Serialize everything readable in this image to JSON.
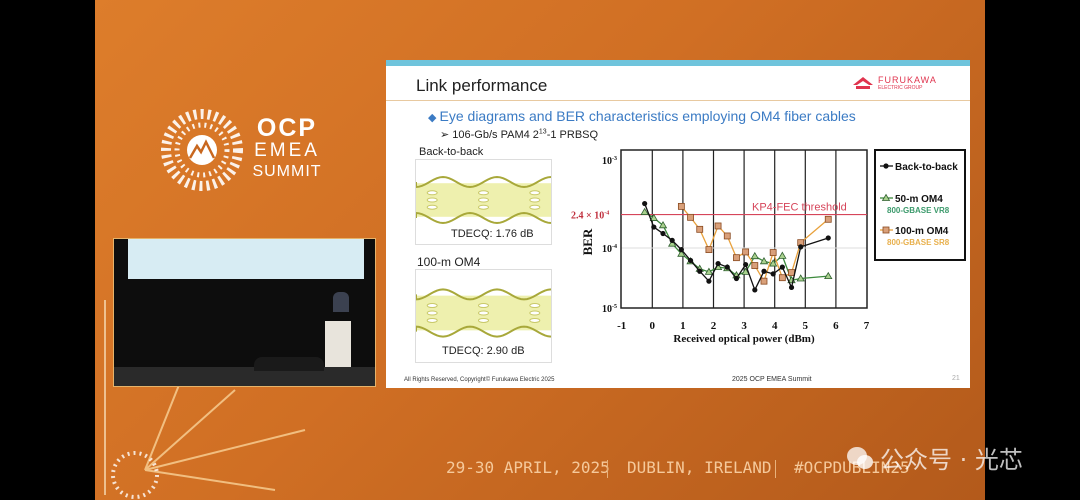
{
  "event": {
    "logo": {
      "line1": "OCP",
      "line2": "EMEA",
      "line3": "SUMMIT"
    },
    "date": "29-30 APRIL, 2025",
    "location": "DUBLIN, IRELAND",
    "hashtag": "#OCPDUBLIN25",
    "watermark": "公众号 · 光芯"
  },
  "slide": {
    "title": "Link performance",
    "company_logo": {
      "name": "FURUKAWA",
      "sub": "ELECTRIC GROUP",
      "color": "#e0344e"
    },
    "bullet": "Eye diagrams and BER characteristics employing OM4 fiber cables",
    "sub_bullet_prefix": "106-Gb/s PAM4 2",
    "sub_bullet_sup": "13",
    "sub_bullet_suffix": "-1 PRBSQ",
    "eye1": {
      "label": "Back-to-back",
      "tdecq": "TDECQ: 1.76 dB"
    },
    "eye2": {
      "label": "100-m OM4",
      "tdecq": "TDECQ: 2.90 dB"
    },
    "footer_left": "All Rights Reserved, Copyright© Furukawa Electric 2025",
    "footer_center": "2025 OCP EMEA Summit",
    "page_number": "21"
  },
  "chart_data": {
    "type": "line",
    "xlabel": "Received optical power (dBm)",
    "ylabel": "BER",
    "xlim": [
      -1,
      7
    ],
    "xticks": [
      "-1",
      "0",
      "1",
      "2",
      "3",
      "4",
      "5",
      "6",
      "7"
    ],
    "ylim": [
      1e-05,
      0.001
    ],
    "yscale": "log",
    "yticks": [
      {
        "value": 0.001,
        "base": "10",
        "exp": "-3"
      },
      {
        "value": 0.0001,
        "base": "10",
        "exp": "-4"
      },
      {
        "value": 1e-05,
        "base": "10",
        "exp": "-5"
      }
    ],
    "grid": "vertical",
    "threshold": {
      "value": 0.00024,
      "label": "KP4-FEC threshold",
      "tick_label": "2.4 × 10",
      "tick_exp": "-4",
      "color": "#d6455a"
    },
    "legend_position": "right",
    "series": [
      {
        "name": "Back-to-back",
        "sub": "",
        "color": "#111111",
        "marker": "circle",
        "x": [
          -0.25,
          0.05,
          0.35,
          0.65,
          0.95,
          1.25,
          1.55,
          1.85,
          2.15,
          2.45,
          2.75,
          3.05,
          3.35,
          3.65,
          3.95,
          4.25,
          4.55,
          4.85,
          5.75
        ],
        "y": [
          0.00032,
          0.000173,
          0.000146,
          0.000122,
          9.4e-05,
          6.2e-05,
          4.1e-05,
          2.8e-05,
          5.5e-05,
          4.8e-05,
          3.1e-05,
          5.3e-05,
          2e-05,
          4.1e-05,
          3.7e-05,
          4.8e-05,
          2.2e-05,
          0.000103,
          0.00013
        ]
      },
      {
        "name": "50-m OM4",
        "sub": "800-GBASE VR8",
        "color": "#3c8a3c",
        "fill": "#a8d08d",
        "marker": "triangle",
        "x": [
          -0.25,
          0.05,
          0.35,
          0.65,
          0.95,
          1.25,
          1.55,
          1.85,
          2.15,
          2.45,
          2.75,
          3.05,
          3.35,
          3.65,
          3.95,
          4.25,
          4.55,
          4.85,
          5.75
        ],
        "y": [
          0.000256,
          0.000219,
          0.000181,
          0.000112,
          8e-05,
          6e-05,
          4.5e-05,
          4e-05,
          4.8e-05,
          4.6e-05,
          3.5e-05,
          4e-05,
          7.3e-05,
          6e-05,
          5.5e-05,
          7.4e-05,
          2.9e-05,
          3.1e-05,
          3.4e-05
        ]
      },
      {
        "name": "100-m OM4",
        "sub": "800-GBASE SR8",
        "color": "#e8a13c",
        "fill": "#d9a07a",
        "marker": "square",
        "x": [
          0.95,
          1.25,
          1.55,
          1.85,
          2.15,
          2.45,
          2.75,
          3.05,
          3.35,
          3.65,
          3.95,
          4.25,
          4.55,
          4.85,
          5.75
        ],
        "y": [
          0.000297,
          0.000223,
          0.000163,
          9.4e-05,
          0.000178,
          0.000137,
          6.9e-05,
          8.6e-05,
          5.1e-05,
          2.8e-05,
          8.4e-05,
          3.2e-05,
          3.9e-05,
          0.000115,
          0.000212
        ]
      }
    ]
  }
}
